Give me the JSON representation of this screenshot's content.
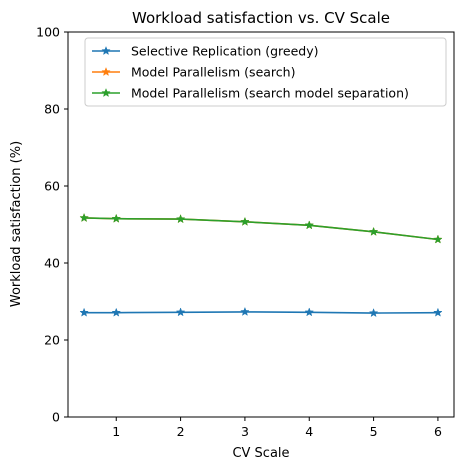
{
  "chart_data": {
    "type": "line",
    "title": "Workload satisfaction vs. CV Scale",
    "xlabel": "CV Scale",
    "ylabel": "Workload satisfaction (%)",
    "x": [
      0.5,
      1,
      2,
      3,
      4,
      5,
      6
    ],
    "xlim": [
      0.25,
      6.25
    ],
    "ylim": [
      0,
      100
    ],
    "xticks": [
      1,
      2,
      3,
      4,
      5,
      6
    ],
    "yticks": [
      0,
      20,
      40,
      60,
      80,
      100
    ],
    "grid": false,
    "legend_position": "top-right",
    "series": [
      {
        "name": "Selective Replication (greedy)",
        "color": "#1f77b4",
        "marker": "star",
        "values": [
          27.1,
          27.1,
          27.2,
          27.3,
          27.2,
          27.0,
          27.1
        ]
      },
      {
        "name": "Model Parallelism (search)",
        "color": "#ff7f0e",
        "marker": "star",
        "values": [
          51.7,
          51.5,
          51.4,
          50.7,
          49.8,
          48.1,
          46.1
        ]
      },
      {
        "name": "Model Parallelism (search model separation)",
        "color": "#2ca02c",
        "marker": "star",
        "values": [
          51.7,
          51.5,
          51.4,
          50.7,
          49.8,
          48.1,
          46.1
        ]
      }
    ]
  }
}
